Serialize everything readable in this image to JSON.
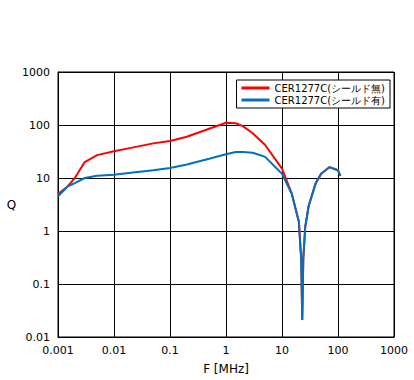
{
  "chart_data": {
    "type": "line",
    "log": true,
    "grid": true,
    "legend": "upper right",
    "xlabel": "F [MHz]",
    "ylabel": "Q",
    "xlim": [
      0.001,
      1000
    ],
    "xticks": [
      0.001,
      0.01,
      0.1,
      1,
      10,
      100,
      1000
    ],
    "ylim": [
      0.01,
      1000
    ],
    "yticks": [
      0.01,
      0.1,
      1,
      10,
      100,
      1000
    ],
    "x": [
      0.001,
      0.0015,
      0.002,
      0.003,
      0.005,
      0.01,
      0.02,
      0.05,
      0.1,
      0.2,
      0.5,
      1,
      1.5,
      2,
      3,
      5,
      10,
      15,
      20,
      22,
      23,
      24,
      26,
      30,
      40,
      50,
      70,
      100,
      110
    ],
    "series": [
      {
        "name": "CER1277C(シールド無)",
        "color": "#ff0000",
        "values": [
          5,
          7,
          10,
          20,
          27,
          32,
          37,
          45,
          50,
          60,
          85,
          110,
          108,
          95,
          70,
          42,
          15,
          5,
          1.5,
          0.3,
          0.021,
          0.3,
          1.2,
          3,
          8,
          12,
          16,
          14,
          11
        ]
      },
      {
        "name": "CER1277C(シールド有)",
        "color": "#0070c0",
        "values": [
          4.5,
          7,
          8,
          10,
          11,
          11.5,
          12.5,
          14,
          15.5,
          18,
          23,
          28,
          31,
          31,
          30,
          25,
          12,
          5,
          1.5,
          0.3,
          0.021,
          0.3,
          1.2,
          3,
          8,
          12,
          16,
          14,
          11
        ]
      }
    ]
  }
}
